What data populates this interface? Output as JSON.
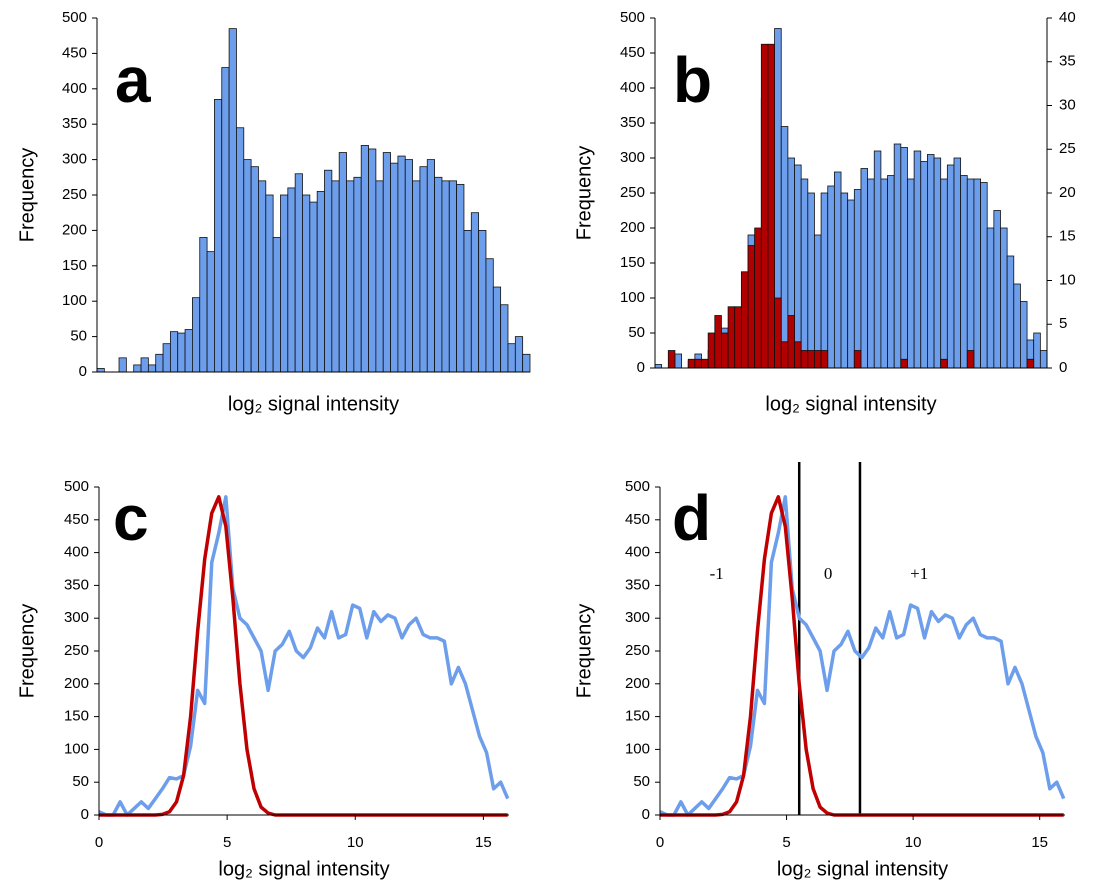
{
  "chart_data": [
    {
      "type": "bar",
      "panel_label": "a",
      "ylabel": "Frequency",
      "xlabel": "log₂ signal intensity",
      "categories": [
        null,
        null,
        null,
        null,
        null,
        null,
        null,
        null,
        null,
        null,
        null,
        null,
        null,
        null,
        null,
        null,
        null,
        null,
        null,
        null,
        null,
        null,
        null,
        null,
        null,
        null,
        null,
        null,
        null,
        null,
        null,
        null,
        null,
        null,
        null,
        null,
        null,
        null,
        null,
        null,
        null,
        null,
        null,
        null,
        null,
        null,
        null,
        null,
        null,
        null,
        null,
        null,
        null,
        null,
        null,
        null,
        null,
        null,
        null
      ],
      "ylim": [
        0,
        500
      ],
      "yticks": [
        0,
        50,
        100,
        150,
        200,
        250,
        300,
        350,
        400,
        450,
        500
      ],
      "series": [
        {
          "color": "#6d9eeb",
          "values": [
            5,
            0,
            0,
            20,
            0,
            10,
            20,
            10,
            25,
            40,
            57,
            55,
            60,
            105,
            190,
            170,
            385,
            430,
            485,
            345,
            300,
            290,
            270,
            250,
            190,
            250,
            260,
            280,
            250,
            240,
            255,
            285,
            270,
            310,
            270,
            275,
            320,
            315,
            270,
            310,
            295,
            305,
            300,
            270,
            290,
            300,
            275,
            270,
            270,
            265,
            200,
            225,
            200,
            160,
            120,
            95,
            40,
            50,
            25
          ]
        }
      ]
    },
    {
      "type": "bar",
      "panel_label": "b",
      "ylabel": "Frequency",
      "xlabel": "log₂ signal intensity",
      "categories": [
        null,
        null,
        null,
        null,
        null,
        null,
        null,
        null,
        null,
        null,
        null,
        null,
        null,
        null,
        null,
        null,
        null,
        null,
        null,
        null,
        null,
        null,
        null,
        null,
        null,
        null,
        null,
        null,
        null,
        null,
        null,
        null,
        null,
        null,
        null,
        null,
        null,
        null,
        null,
        null,
        null,
        null,
        null,
        null,
        null,
        null,
        null,
        null,
        null,
        null,
        null,
        null,
        null,
        null,
        null,
        null,
        null,
        null,
        null
      ],
      "ylim": [
        0,
        500
      ],
      "yticks": [
        0,
        50,
        100,
        150,
        200,
        250,
        300,
        350,
        400,
        450,
        500
      ],
      "y2lim": [
        0,
        40
      ],
      "y2ticks": [
        0,
        5,
        10,
        15,
        20,
        25,
        30,
        35,
        40
      ],
      "series": [
        {
          "color": "#6d9eeb",
          "values": [
            5,
            0,
            0,
            20,
            0,
            10,
            20,
            10,
            25,
            40,
            57,
            55,
            60,
            105,
            190,
            170,
            385,
            430,
            485,
            345,
            300,
            290,
            270,
            250,
            190,
            250,
            260,
            280,
            250,
            240,
            255,
            285,
            270,
            310,
            270,
            275,
            320,
            315,
            270,
            310,
            295,
            305,
            300,
            270,
            290,
            300,
            275,
            270,
            270,
            265,
            200,
            225,
            200,
            160,
            120,
            95,
            40,
            50,
            25
          ]
        },
        {
          "color": "#b00000",
          "axis": "y2",
          "values": [
            0,
            0,
            2,
            0,
            0,
            1,
            1,
            1,
            4,
            6,
            4,
            7,
            7,
            11,
            14,
            16,
            37,
            37,
            8,
            3,
            6,
            3,
            2,
            2,
            2,
            2,
            0,
            0,
            0,
            0,
            2,
            0,
            0,
            0,
            0,
            0,
            0,
            1,
            0,
            0,
            0,
            0,
            0,
            1,
            0,
            0,
            0,
            2,
            0,
            0,
            0,
            0,
            0,
            0,
            0,
            0,
            1,
            0,
            0
          ]
        }
      ]
    },
    {
      "type": "line",
      "panel_label": "c",
      "ylabel": "Frequency",
      "xlabel": "log₂ signal intensity",
      "x": [
        0,
        0.275,
        0.55,
        0.825,
        1.1,
        1.375,
        1.65,
        1.925,
        2.2,
        2.475,
        2.75,
        3.025,
        3.3,
        3.575,
        3.85,
        4.125,
        4.4,
        4.675,
        4.95,
        5.225,
        5.5,
        5.775,
        6.05,
        6.325,
        6.6,
        6.875,
        7.15,
        7.425,
        7.7,
        7.975,
        8.25,
        8.525,
        8.8,
        9.075,
        9.35,
        9.625,
        9.9,
        10.175,
        10.45,
        10.725,
        11,
        11.275,
        11.55,
        11.825,
        12.1,
        12.375,
        12.65,
        12.925,
        13.2,
        13.475,
        13.75,
        14.025,
        14.3,
        14.575,
        14.85,
        15.125,
        15.4,
        15.675,
        15.95
      ],
      "xlim": [
        0,
        16
      ],
      "xticks": [
        0,
        5,
        10,
        15
      ],
      "ylim": [
        0,
        500
      ],
      "yticks": [
        0,
        50,
        100,
        150,
        200,
        250,
        300,
        350,
        400,
        450,
        500
      ],
      "series": [
        {
          "color": "#6d9eeb",
          "values": [
            5,
            0,
            0,
            20,
            0,
            10,
            20,
            10,
            25,
            40,
            57,
            55,
            60,
            105,
            190,
            170,
            385,
            430,
            485,
            345,
            300,
            290,
            270,
            250,
            190,
            250,
            260,
            280,
            250,
            240,
            255,
            285,
            270,
            310,
            270,
            275,
            320,
            315,
            270,
            310,
            295,
            305,
            300,
            270,
            290,
            300,
            275,
            270,
            270,
            265,
            200,
            225,
            200,
            160,
            120,
            95,
            40,
            50,
            25
          ]
        },
        {
          "color": "#c00000",
          "values": [
            0,
            0,
            0,
            0,
            0,
            0,
            0,
            0,
            0,
            1,
            5,
            20,
            60,
            150,
            280,
            390,
            460,
            485,
            440,
            330,
            200,
            100,
            40,
            12,
            3,
            0,
            0,
            0,
            0,
            0,
            0,
            0,
            0,
            0,
            0,
            0,
            0,
            0,
            0,
            0,
            0,
            0,
            0,
            0,
            0,
            0,
            0,
            0,
            0,
            0,
            0,
            0,
            0,
            0,
            0,
            0,
            0,
            0,
            0
          ]
        }
      ]
    },
    {
      "type": "line",
      "panel_label": "d",
      "ylabel": "Frequency",
      "xlabel": "log₂ signal intensity",
      "x": [
        0,
        0.275,
        0.55,
        0.825,
        1.1,
        1.375,
        1.65,
        1.925,
        2.2,
        2.475,
        2.75,
        3.025,
        3.3,
        3.575,
        3.85,
        4.125,
        4.4,
        4.675,
        4.95,
        5.225,
        5.5,
        5.775,
        6.05,
        6.325,
        6.6,
        6.875,
        7.15,
        7.425,
        7.7,
        7.975,
        8.25,
        8.525,
        8.8,
        9.075,
        9.35,
        9.625,
        9.9,
        10.175,
        10.45,
        10.725,
        11,
        11.275,
        11.55,
        11.825,
        12.1,
        12.375,
        12.65,
        12.925,
        13.2,
        13.475,
        13.75,
        14.025,
        14.3,
        14.575,
        14.85,
        15.125,
        15.4,
        15.675,
        15.95
      ],
      "xlim": [
        0,
        16
      ],
      "xticks": [
        0,
        5,
        10,
        15
      ],
      "ylim": [
        0,
        500
      ],
      "yticks": [
        0,
        50,
        100,
        150,
        200,
        250,
        300,
        350,
        400,
        450,
        500
      ],
      "vlines": [
        5.5,
        7.9
      ],
      "annotations": [
        "-1",
        "0",
        "+1"
      ],
      "series": [
        {
          "color": "#6d9eeb",
          "values": [
            5,
            0,
            0,
            20,
            0,
            10,
            20,
            10,
            25,
            40,
            57,
            55,
            60,
            105,
            190,
            170,
            385,
            430,
            485,
            345,
            300,
            290,
            270,
            250,
            190,
            250,
            260,
            280,
            250,
            240,
            255,
            285,
            270,
            310,
            270,
            275,
            320,
            315,
            270,
            310,
            295,
            305,
            300,
            270,
            290,
            300,
            275,
            270,
            270,
            265,
            200,
            225,
            200,
            160,
            120,
            95,
            40,
            50,
            25
          ]
        },
        {
          "color": "#c00000",
          "values": [
            0,
            0,
            0,
            0,
            0,
            0,
            0,
            0,
            0,
            1,
            5,
            20,
            60,
            150,
            280,
            390,
            460,
            485,
            440,
            330,
            200,
            100,
            40,
            12,
            3,
            0,
            0,
            0,
            0,
            0,
            0,
            0,
            0,
            0,
            0,
            0,
            0,
            0,
            0,
            0,
            0,
            0,
            0,
            0,
            0,
            0,
            0,
            0,
            0,
            0,
            0,
            0,
            0,
            0,
            0,
            0,
            0,
            0,
            0
          ]
        }
      ]
    }
  ]
}
